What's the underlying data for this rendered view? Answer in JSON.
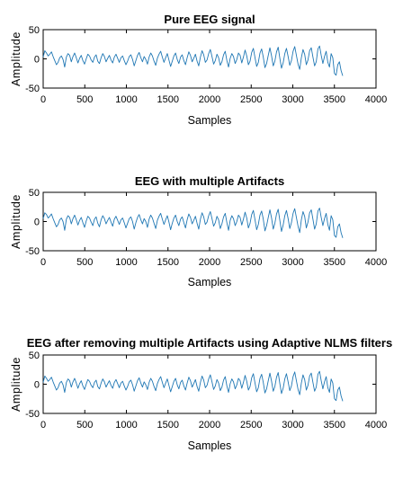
{
  "figure": {
    "background": "#ffffff",
    "line_color": "#1f77b4",
    "axis_color": "#000000"
  },
  "chart_data": [
    {
      "type": "line",
      "title": "Pure EEG signal",
      "xlabel": "Samples",
      "ylabel": "Amplitude",
      "xlim": [
        0,
        4000
      ],
      "ylim": [
        -50,
        50
      ],
      "xticks": [
        0,
        500,
        1000,
        1500,
        2000,
        2500,
        3000,
        3500,
        4000
      ],
      "yticks": [
        -50,
        0,
        50
      ],
      "grid": false,
      "series": [
        {
          "x_range": [
            0,
            3600
          ],
          "values": [
            3,
            14,
            10,
            5,
            8,
            12,
            4,
            -3,
            -10,
            -6,
            2,
            5,
            -1,
            -14,
            3,
            9,
            6,
            -5,
            4,
            10,
            2,
            -7,
            1,
            6,
            -3,
            -9,
            0,
            8,
            5,
            -2,
            -6,
            3,
            7,
            -4,
            -8,
            2,
            9,
            4,
            -5,
            1,
            6,
            -2,
            -7,
            3,
            8,
            1,
            -6,
            2,
            5,
            -3,
            -10,
            -4,
            4,
            7,
            -1,
            -12,
            -3,
            6,
            11,
            2,
            -5,
            4,
            -1,
            -9,
            3,
            10,
            5,
            -4,
            -11,
            1,
            8,
            13,
            3,
            -6,
            2,
            9,
            -2,
            -13,
            -4,
            5,
            10,
            -1,
            -8,
            3,
            7,
            -3,
            -10,
            2,
            12,
            6,
            -5,
            1,
            8,
            -4,
            -12,
            3,
            14,
            7,
            -6,
            -2,
            9,
            16,
            4,
            -9,
            -3,
            8,
            2,
            -11,
            -5,
            7,
            13,
            -3,
            -14,
            1,
            9,
            4,
            -8,
            -1,
            10,
            6,
            -7,
            3,
            15,
            5,
            -10,
            -4,
            11,
            18,
            2,
            -13,
            -6,
            10,
            17,
            3,
            -15,
            -8,
            6,
            19,
            5,
            -12,
            -4,
            12,
            20,
            1,
            -16,
            -7,
            9,
            18,
            4,
            -11,
            -3,
            13,
            21,
            6,
            -9,
            -18,
            2,
            16,
            8,
            -10,
            -2,
            14,
            19,
            3,
            -12,
            -5,
            17,
            22,
            6,
            -8,
            4,
            13,
            -6,
            -14,
            9,
            2,
            -25,
            -28,
            -10,
            -5,
            -20,
            -29
          ]
        }
      ]
    },
    {
      "type": "line",
      "title": "EEG with multiple Artifacts",
      "xlabel": "Samples",
      "ylabel": "Amplitude",
      "xlim": [
        0,
        4000
      ],
      "ylim": [
        -50,
        50
      ],
      "xticks": [
        0,
        500,
        1000,
        1500,
        2000,
        2500,
        3000,
        3500,
        4000
      ],
      "yticks": [
        -50,
        0,
        50
      ],
      "grid": false,
      "series": [
        {
          "x_range": [
            0,
            3600
          ],
          "values": [
            5,
            15,
            12,
            6,
            9,
            13,
            5,
            -2,
            -9,
            -5,
            3,
            6,
            0,
            -15,
            4,
            10,
            7,
            -4,
            5,
            11,
            3,
            -6,
            2,
            7,
            -2,
            -10,
            1,
            9,
            6,
            -1,
            -7,
            4,
            8,
            -3,
            -9,
            3,
            10,
            5,
            -4,
            2,
            7,
            -1,
            -8,
            4,
            9,
            2,
            -5,
            3,
            6,
            -2,
            -11,
            -3,
            5,
            8,
            0,
            -13,
            -2,
            7,
            12,
            3,
            -4,
            5,
            0,
            -10,
            4,
            11,
            6,
            -3,
            -12,
            2,
            9,
            14,
            4,
            -5,
            3,
            10,
            -1,
            -14,
            -3,
            6,
            11,
            0,
            -7,
            4,
            8,
            -2,
            -11,
            3,
            13,
            7,
            -4,
            2,
            9,
            -3,
            -13,
            4,
            15,
            8,
            -5,
            -1,
            10,
            17,
            5,
            -8,
            -2,
            9,
            3,
            -12,
            -4,
            8,
            14,
            -2,
            -15,
            2,
            10,
            5,
            -7,
            0,
            11,
            7,
            -6,
            4,
            16,
            6,
            -11,
            -3,
            12,
            19,
            3,
            -14,
            -5,
            11,
            18,
            4,
            -16,
            -7,
            7,
            20,
            6,
            -13,
            -3,
            13,
            21,
            2,
            -17,
            -6,
            10,
            19,
            5,
            -12,
            -2,
            14,
            22,
            7,
            -8,
            -19,
            3,
            17,
            9,
            -11,
            -1,
            15,
            20,
            4,
            -13,
            -4,
            18,
            23,
            7,
            -7,
            5,
            14,
            -5,
            -15,
            10,
            3,
            -24,
            -27,
            -9,
            -4,
            -19,
            -28
          ]
        }
      ]
    },
    {
      "type": "line",
      "title": "EEG after removing  multiple Artifacts using Adaptive NLMS filters",
      "xlabel": "Samples",
      "ylabel": "Amplitude",
      "xlim": [
        0,
        4000
      ],
      "ylim": [
        -50,
        50
      ],
      "xticks": [
        0,
        500,
        1000,
        1500,
        2000,
        2500,
        3000,
        3500,
        4000
      ],
      "yticks": [
        -50,
        0,
        50
      ],
      "grid": false,
      "series": [
        {
          "x_range": [
            0,
            3600
          ],
          "values": [
            3,
            14,
            10,
            5,
            8,
            12,
            4,
            -3,
            -10,
            -6,
            2,
            5,
            -1,
            -14,
            3,
            9,
            6,
            -5,
            4,
            10,
            2,
            -7,
            1,
            6,
            -3,
            -9,
            0,
            8,
            5,
            -2,
            -6,
            3,
            7,
            -4,
            -8,
            2,
            9,
            4,
            -5,
            1,
            6,
            -2,
            -7,
            3,
            8,
            1,
            -6,
            2,
            5,
            -3,
            -10,
            -4,
            4,
            7,
            -1,
            -12,
            -3,
            6,
            11,
            2,
            -5,
            4,
            -1,
            -9,
            3,
            10,
            5,
            -4,
            -11,
            1,
            8,
            13,
            3,
            -6,
            2,
            9,
            -2,
            -13,
            -4,
            5,
            10,
            -1,
            -8,
            3,
            7,
            -3,
            -10,
            2,
            12,
            6,
            -5,
            1,
            8,
            -4,
            -12,
            3,
            14,
            7,
            -6,
            -2,
            9,
            16,
            4,
            -9,
            -3,
            8,
            2,
            -11,
            -5,
            7,
            13,
            -3,
            -14,
            1,
            9,
            4,
            -8,
            -1,
            10,
            6,
            -7,
            3,
            15,
            5,
            -10,
            -4,
            11,
            18,
            2,
            -13,
            -6,
            10,
            17,
            3,
            -15,
            -8,
            6,
            19,
            5,
            -12,
            -4,
            12,
            20,
            1,
            -16,
            -7,
            9,
            18,
            4,
            -11,
            -3,
            13,
            21,
            6,
            -9,
            -18,
            2,
            16,
            8,
            -10,
            -2,
            14,
            19,
            3,
            -12,
            -5,
            17,
            22,
            6,
            -8,
            4,
            13,
            -6,
            -14,
            9,
            2,
            -25,
            -28,
            -10,
            -5,
            -20,
            -29
          ]
        }
      ]
    }
  ]
}
